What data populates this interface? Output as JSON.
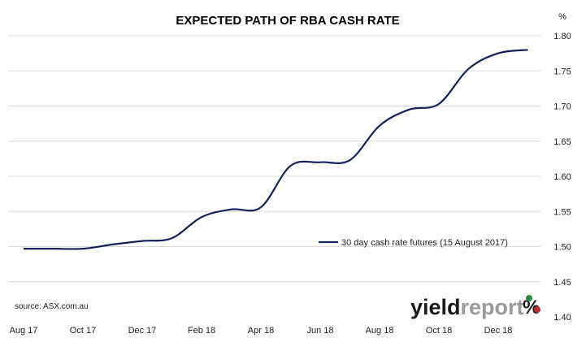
{
  "chart_data": {
    "type": "line",
    "title": "EXPECTED PATH OF RBA CASH RATE",
    "unit_label": "%",
    "x_tick_labels": [
      "Aug 17",
      "Oct 17",
      "Dec 17",
      "Feb 18",
      "Apr 18",
      "Jun 18",
      "Aug 18",
      "Oct 18",
      "Dec 18"
    ],
    "y_ticks": [
      1.4,
      1.45,
      1.5,
      1.55,
      1.6,
      1.65,
      1.7,
      1.75,
      1.8
    ],
    "ylim": [
      1.4,
      1.8
    ],
    "y_axis_side": "right",
    "grid": "horizontal",
    "legend_position": "inside-right-middle",
    "series": [
      {
        "name": "30 day cash rate futures (15 August 2017)",
        "color": "#14215a",
        "points": [
          [
            "Aug 17",
            1.497
          ],
          [
            "Sep 17",
            1.497
          ],
          [
            "Oct 17",
            1.497
          ],
          [
            "Nov 17",
            1.503
          ],
          [
            "Dec 17",
            1.508
          ],
          [
            "Jan 18",
            1.512
          ],
          [
            "Feb 18",
            1.542
          ],
          [
            "Mar 18",
            1.553
          ],
          [
            "Apr 18",
            1.556
          ],
          [
            "May 18",
            1.615
          ],
          [
            "Jun 18",
            1.62
          ],
          [
            "Jul 18",
            1.623
          ],
          [
            "Aug 18",
            1.672
          ],
          [
            "Sep 18",
            1.695
          ],
          [
            "Oct 18",
            1.703
          ],
          [
            "Nov 18",
            1.753
          ],
          [
            "Dec 18",
            1.775
          ],
          [
            "Jan 19",
            1.78
          ]
        ]
      }
    ]
  },
  "source": "source: ASX.com.au",
  "logo": {
    "part1": "yield",
    "part2": "report",
    "pct": "%"
  }
}
